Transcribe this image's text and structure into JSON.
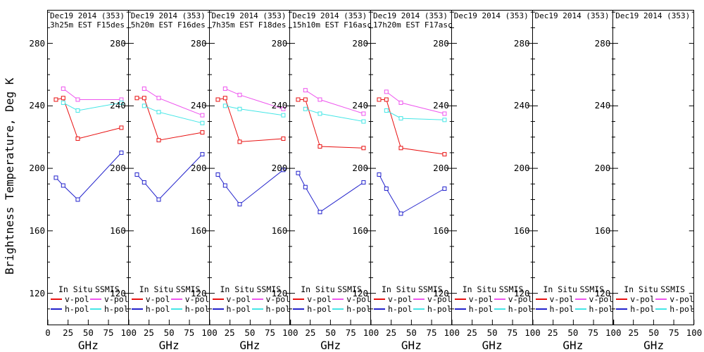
{
  "y_axis_title": "Brightness Temperature, Deg K",
  "x_axis_unit": "GHz",
  "colors": {
    "in_situ_vpol": "#e81010",
    "in_situ_hpol": "#2222cc",
    "ssmis_vpol": "#ee55ee",
    "ssmis_hpol": "#44e6e6",
    "axis": "#000000",
    "background": "#ffffff"
  },
  "legend": {
    "group1_header": "In Situ",
    "group2_header": "SSMIS",
    "vpol_label": "v-pol",
    "hpol_label": "h-pol"
  },
  "axes": {
    "y_tick_labels": [
      280,
      240,
      200,
      160,
      120
    ],
    "x_tick_labels": [
      0,
      25,
      50,
      75,
      100
    ],
    "y_range": [
      100,
      301
    ],
    "x_range": [
      0,
      100
    ],
    "y_minor_step": 10
  },
  "chart_data": {
    "type": "line",
    "xlabel": "GHz",
    "ylabel": "Brightness Temperature, Deg K",
    "x_insitu_ghz": [
      10,
      19,
      37,
      91
    ],
    "x_ssmis_ghz": [
      19,
      37,
      91
    ],
    "panels": [
      {
        "header_line1": "Dec19 2014 (353)",
        "header_line2": "3h25m EST F15des",
        "in_situ_vpol": [
          244,
          245,
          219,
          226
        ],
        "in_situ_hpol": [
          194,
          189,
          180,
          210
        ],
        "ssmis_vpol": [
          251,
          244,
          244
        ],
        "ssmis_hpol": [
          242,
          237,
          242
        ]
      },
      {
        "header_line1": "Dec19 2014 (353)",
        "header_line2": "5h20m EST F16des",
        "in_situ_vpol": [
          245,
          245,
          218,
          223
        ],
        "in_situ_hpol": [
          196,
          191,
          180,
          209
        ],
        "ssmis_vpol": [
          251,
          245,
          234
        ],
        "ssmis_hpol": [
          240,
          236,
          229
        ]
      },
      {
        "header_line1": "Dec19 2014 (353)",
        "header_line2": "7h35m EST F18des",
        "in_situ_vpol": [
          244,
          245,
          217,
          219
        ],
        "in_situ_hpol": [
          196,
          189,
          177,
          199
        ],
        "ssmis_vpol": [
          251,
          247,
          238
        ],
        "ssmis_hpol": [
          240,
          238,
          234
        ]
      },
      {
        "header_line1": "Dec19 2014 (353)",
        "header_line2": "15h10m EST F16asc",
        "in_situ_vpol": [
          244,
          244,
          214,
          213
        ],
        "in_situ_hpol": [
          197,
          188,
          172,
          191
        ],
        "ssmis_vpol": [
          250,
          244,
          235
        ],
        "ssmis_hpol": [
          238,
          235,
          230
        ]
      },
      {
        "header_line1": "Dec19 2014 (353)",
        "header_line2": "17h20m EST F17asc",
        "in_situ_vpol": [
          244,
          244,
          213,
          209
        ],
        "in_situ_hpol": [
          196,
          187,
          171,
          187
        ],
        "ssmis_vpol": [
          249,
          242,
          235
        ],
        "ssmis_hpol": [
          237,
          232,
          231
        ]
      },
      {
        "header_line1": "Dec19 2014 (353)",
        "header_line2": "",
        "in_situ_vpol": [],
        "in_situ_hpol": [],
        "ssmis_vpol": [],
        "ssmis_hpol": []
      },
      {
        "header_line1": "Dec19 2014 (353)",
        "header_line2": "",
        "in_situ_vpol": [],
        "in_situ_hpol": [],
        "ssmis_vpol": [],
        "ssmis_hpol": []
      },
      {
        "header_line1": "Dec19 2014 (353)",
        "header_line2": "",
        "in_situ_vpol": [],
        "in_situ_hpol": [],
        "ssmis_vpol": [],
        "ssmis_hpol": []
      }
    ]
  }
}
